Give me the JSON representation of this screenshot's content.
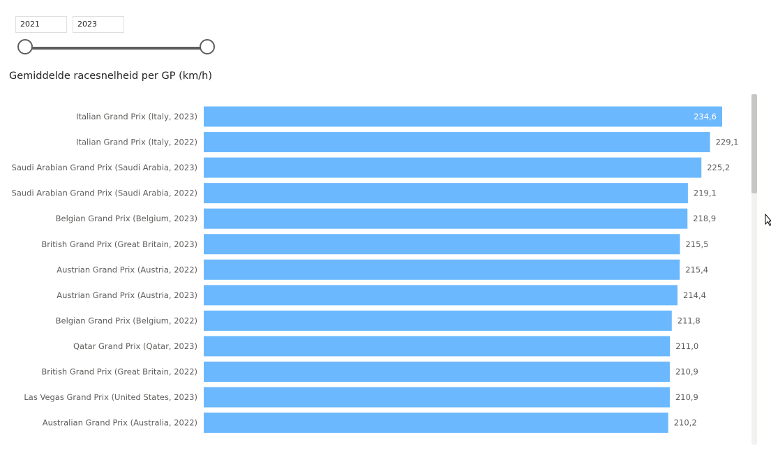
{
  "slicer": {
    "start_value": "2021",
    "end_value": "2023",
    "range": [
      2021,
      2023
    ]
  },
  "chart_title": "Gemiddelde racesnelheid per GP (km/h)",
  "colors": {
    "bar": "#6cb8fe",
    "track": "#605e5c"
  },
  "chart_data": {
    "type": "bar",
    "orientation": "horizontal",
    "title": "Gemiddelde racesnelheid per GP (km/h)",
    "xlim": [
      0,
      240
    ],
    "categories": [
      "Italian Grand Prix (Italy, 2023)",
      "Italian Grand Prix (Italy, 2022)",
      "Saudi Arabian Grand Prix (Saudi Arabia, 2023)",
      "Saudi Arabian Grand Prix (Saudi Arabia, 2022)",
      "Belgian Grand Prix (Belgium, 2023)",
      "British Grand Prix (Great Britain, 2023)",
      "Austrian Grand Prix (Austria, 2022)",
      "Austrian Grand Prix (Austria, 2023)",
      "Belgian Grand Prix (Belgium, 2022)",
      "Qatar Grand Prix (Qatar, 2023)",
      "British Grand Prix (Great Britain, 2022)",
      "Las Vegas Grand Prix (United States, 2023)",
      "Australian Grand Prix (Australia, 2022)"
    ],
    "values": [
      234.6,
      229.1,
      225.2,
      219.1,
      218.9,
      215.5,
      215.4,
      214.4,
      211.8,
      211.0,
      210.9,
      210.9,
      210.2
    ],
    "value_labels": [
      "234,6",
      "229,1",
      "225,2",
      "219,1",
      "218,9",
      "215,5",
      "215,4",
      "214,4",
      "211,8",
      "211,0",
      "210,9",
      "210,9",
      "210,2"
    ]
  }
}
